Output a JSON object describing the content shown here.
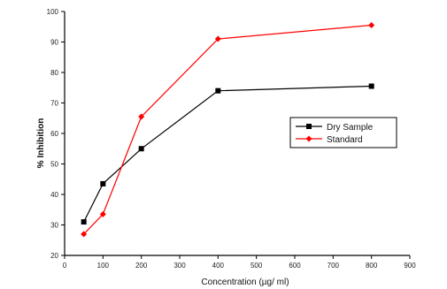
{
  "chart_data": {
    "type": "line",
    "title": "",
    "xlabel": "Concentration (µg/ ml)",
    "ylabel": "% Inhibition",
    "xlim": [
      0,
      900
    ],
    "ylim": [
      20,
      100
    ],
    "xticks": [
      0,
      100,
      200,
      300,
      400,
      500,
      600,
      700,
      800,
      900
    ],
    "yticks": [
      20,
      30,
      40,
      50,
      60,
      70,
      80,
      90,
      100
    ],
    "x_tick_labels": [
      "0",
      "100",
      "200",
      "300",
      "400",
      "500",
      "600",
      "700",
      "800",
      "900"
    ],
    "y_tick_labels": [
      "20",
      "30",
      "40",
      "50",
      "60",
      "70",
      "80",
      "90",
      "100"
    ],
    "grid": false,
    "legend_position": "right",
    "series": [
      {
        "name": "Dry Sample",
        "color": "#000000",
        "marker": "square",
        "x": [
          50,
          100,
          200,
          400,
          800
        ],
        "values": [
          31,
          43.5,
          55,
          74,
          75.5
        ]
      },
      {
        "name": "Standard",
        "color": "#ff0000",
        "marker": "diamond",
        "x": [
          50,
          100,
          200,
          400,
          800
        ],
        "values": [
          27,
          33.5,
          65.5,
          91,
          95.5
        ]
      }
    ]
  }
}
